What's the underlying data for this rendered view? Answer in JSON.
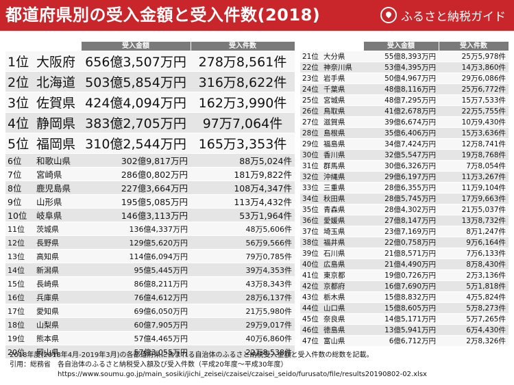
{
  "header": {
    "title": "都道府県別の受入金額と受入件数(2018)",
    "brand": "ふるさと納税ガイド"
  },
  "columns": {
    "amount": "受入金額",
    "count": "受入件数"
  },
  "rows_left": [
    {
      "rank": "1位",
      "pref": "大阪府",
      "amount": "656億3,507万円",
      "count": "278万8,561件"
    },
    {
      "rank": "2位",
      "pref": "北海道",
      "amount": "503億5,854万円",
      "count": "316万8,622件"
    },
    {
      "rank": "3位",
      "pref": "佐賀県",
      "amount": "424億4,094万円",
      "count": "162万3,990件"
    },
    {
      "rank": "4位",
      "pref": "静岡県",
      "amount": "383億2,705万円",
      "count": "97万7,064件"
    },
    {
      "rank": "5位",
      "pref": "福岡県",
      "amount": "310億2,544万円",
      "count": "165万3,353件"
    },
    {
      "rank": "6位",
      "pref": "和歌山県",
      "amount": "302億9,817万円",
      "count": "88万5,024件"
    },
    {
      "rank": "7位",
      "pref": "宮崎県",
      "amount": "286億0,802万円",
      "count": "181万9,822件"
    },
    {
      "rank": "8位",
      "pref": "鹿児島県",
      "amount": "227億3,664万円",
      "count": "108万4,347件"
    },
    {
      "rank": "9位",
      "pref": "山形県",
      "amount": "195億5,085万円",
      "count": "113万4,432件"
    },
    {
      "rank": "10位",
      "pref": "岐阜県",
      "amount": "146億3,113万円",
      "count": "53万1,964件"
    },
    {
      "rank": "11位",
      "pref": "茨城県",
      "amount": "136億4,337万円",
      "count": "48万5,606件"
    },
    {
      "rank": "12位",
      "pref": "長野県",
      "amount": "129億5,620万円",
      "count": "56万9,566件"
    },
    {
      "rank": "13位",
      "pref": "高知県",
      "amount": "114億6,094万円",
      "count": "79万0,785件"
    },
    {
      "rank": "14位",
      "pref": "新潟県",
      "amount": "95億5,445万円",
      "count": "39万4,353件"
    },
    {
      "rank": "15位",
      "pref": "長崎県",
      "amount": "86億8,211万円",
      "count": "43万8,343件"
    },
    {
      "rank": "16位",
      "pref": "兵庫県",
      "amount": "76億4,612万円",
      "count": "28万6,137件"
    },
    {
      "rank": "17位",
      "pref": "愛知県",
      "amount": "69億6,050万円",
      "count": "21万5,980件"
    },
    {
      "rank": "18位",
      "pref": "山梨県",
      "amount": "60億7,905万円",
      "count": "29万9,017件"
    },
    {
      "rank": "19位",
      "pref": "熊本県",
      "amount": "57億4,465万円",
      "count": "40万6,860件"
    },
    {
      "rank": "20位",
      "pref": "岡山県",
      "amount": "57億3,055万円",
      "count": "22万8,538件"
    }
  ],
  "rows_right": [
    {
      "rank": "21位",
      "pref": "大分県",
      "amount": "55億8,393万円",
      "count": "25万5,978件"
    },
    {
      "rank": "22位",
      "pref": "神奈川県",
      "amount": "53億4,395万円",
      "count": "14万3,860件"
    },
    {
      "rank": "23位",
      "pref": "岩手県",
      "amount": "50億4,967万円",
      "count": "29万6,086件"
    },
    {
      "rank": "24位",
      "pref": "千葉県",
      "amount": "48億8,116万円",
      "count": "25万6,772件"
    },
    {
      "rank": "25位",
      "pref": "宮城県",
      "amount": "48億7,295万円",
      "count": "15万7,533件"
    },
    {
      "rank": "26位",
      "pref": "鳥取県",
      "amount": "41億2,678万円",
      "count": "22万5,755件"
    },
    {
      "rank": "27位",
      "pref": "滋賀県",
      "amount": "39億6,674万円",
      "count": "10万9,430件"
    },
    {
      "rank": "28位",
      "pref": "島根県",
      "amount": "35億6,406万円",
      "count": "15万3,636件"
    },
    {
      "rank": "29位",
      "pref": "福島県",
      "amount": "34億7,424万円",
      "count": "12万8,741件"
    },
    {
      "rank": "30位",
      "pref": "香川県",
      "amount": "32億5,547万円",
      "count": "19万8,768件"
    },
    {
      "rank": "31位",
      "pref": "群馬県",
      "amount": "30億6,326万円",
      "count": "7万8,054件"
    },
    {
      "rank": "32位",
      "pref": "沖縄県",
      "amount": "29億6,197万円",
      "count": "11万3,267件"
    },
    {
      "rank": "33位",
      "pref": "三重県",
      "amount": "28億6,355万円",
      "count": "11万9,104件"
    },
    {
      "rank": "34位",
      "pref": "秋田県",
      "amount": "28億5,745万円",
      "count": "17万9,663件"
    },
    {
      "rank": "35位",
      "pref": "青森県",
      "amount": "28億4,302万円",
      "count": "21万5,037件"
    },
    {
      "rank": "36位",
      "pref": "愛媛県",
      "amount": "27億8,147万円",
      "count": "13万8,732件"
    },
    {
      "rank": "37位",
      "pref": "埼玉県",
      "amount": "23億7,169万円",
      "count": "8万1,247件"
    },
    {
      "rank": "38位",
      "pref": "福井県",
      "amount": "22億0,758万円",
      "count": "9万6,164件"
    },
    {
      "rank": "39位",
      "pref": "石川県",
      "amount": "21億8,571万円",
      "count": "7万6,133件"
    },
    {
      "rank": "40位",
      "pref": "広島県",
      "amount": "21億4,490万円",
      "count": "8万8,430件"
    },
    {
      "rank": "41位",
      "pref": "東京都",
      "amount": "19億0,726万円",
      "count": "2万3,136件"
    },
    {
      "rank": "42位",
      "pref": "京都府",
      "amount": "16億7,690万円",
      "count": "5万1,818件"
    },
    {
      "rank": "43位",
      "pref": "栃木県",
      "amount": "15億8,832万円",
      "count": "4万5,824件"
    },
    {
      "rank": "44位",
      "pref": "山口県",
      "amount": "15億8,605万円",
      "count": "5万8,273件"
    },
    {
      "rank": "45位",
      "pref": "奈良県",
      "amount": "14億5,171万円",
      "count": "5万7,265件"
    },
    {
      "rank": "46位",
      "pref": "徳島県",
      "amount": "13億5,941万円",
      "count": "6万4,430件"
    },
    {
      "rank": "47位",
      "pref": "富山県",
      "amount": "6億6,712万円",
      "count": "2万8,326件"
    }
  ],
  "footer": {
    "note": "2018年度(2018年4月-2019年3月)の各都道府県に含まれる自治体のふるさと納税受入金額と受入件数の総数を記載。",
    "source": "引用：総務省　各自治体のふるさと納税受入額及び受入件数（平成20年度〜平成30年度）",
    "url": "https://www.soumu.go.jp/main_sosiki/jichi_zeisei/czaisei/czaisei_seido/furusato/file/results20190802-02.xlsx"
  },
  "colors": {
    "header_bg": "#c8262b",
    "column_header_bg": "#7a7a7a",
    "row_even": "#e5e5e5",
    "row_odd": "#f7f7f7"
  }
}
